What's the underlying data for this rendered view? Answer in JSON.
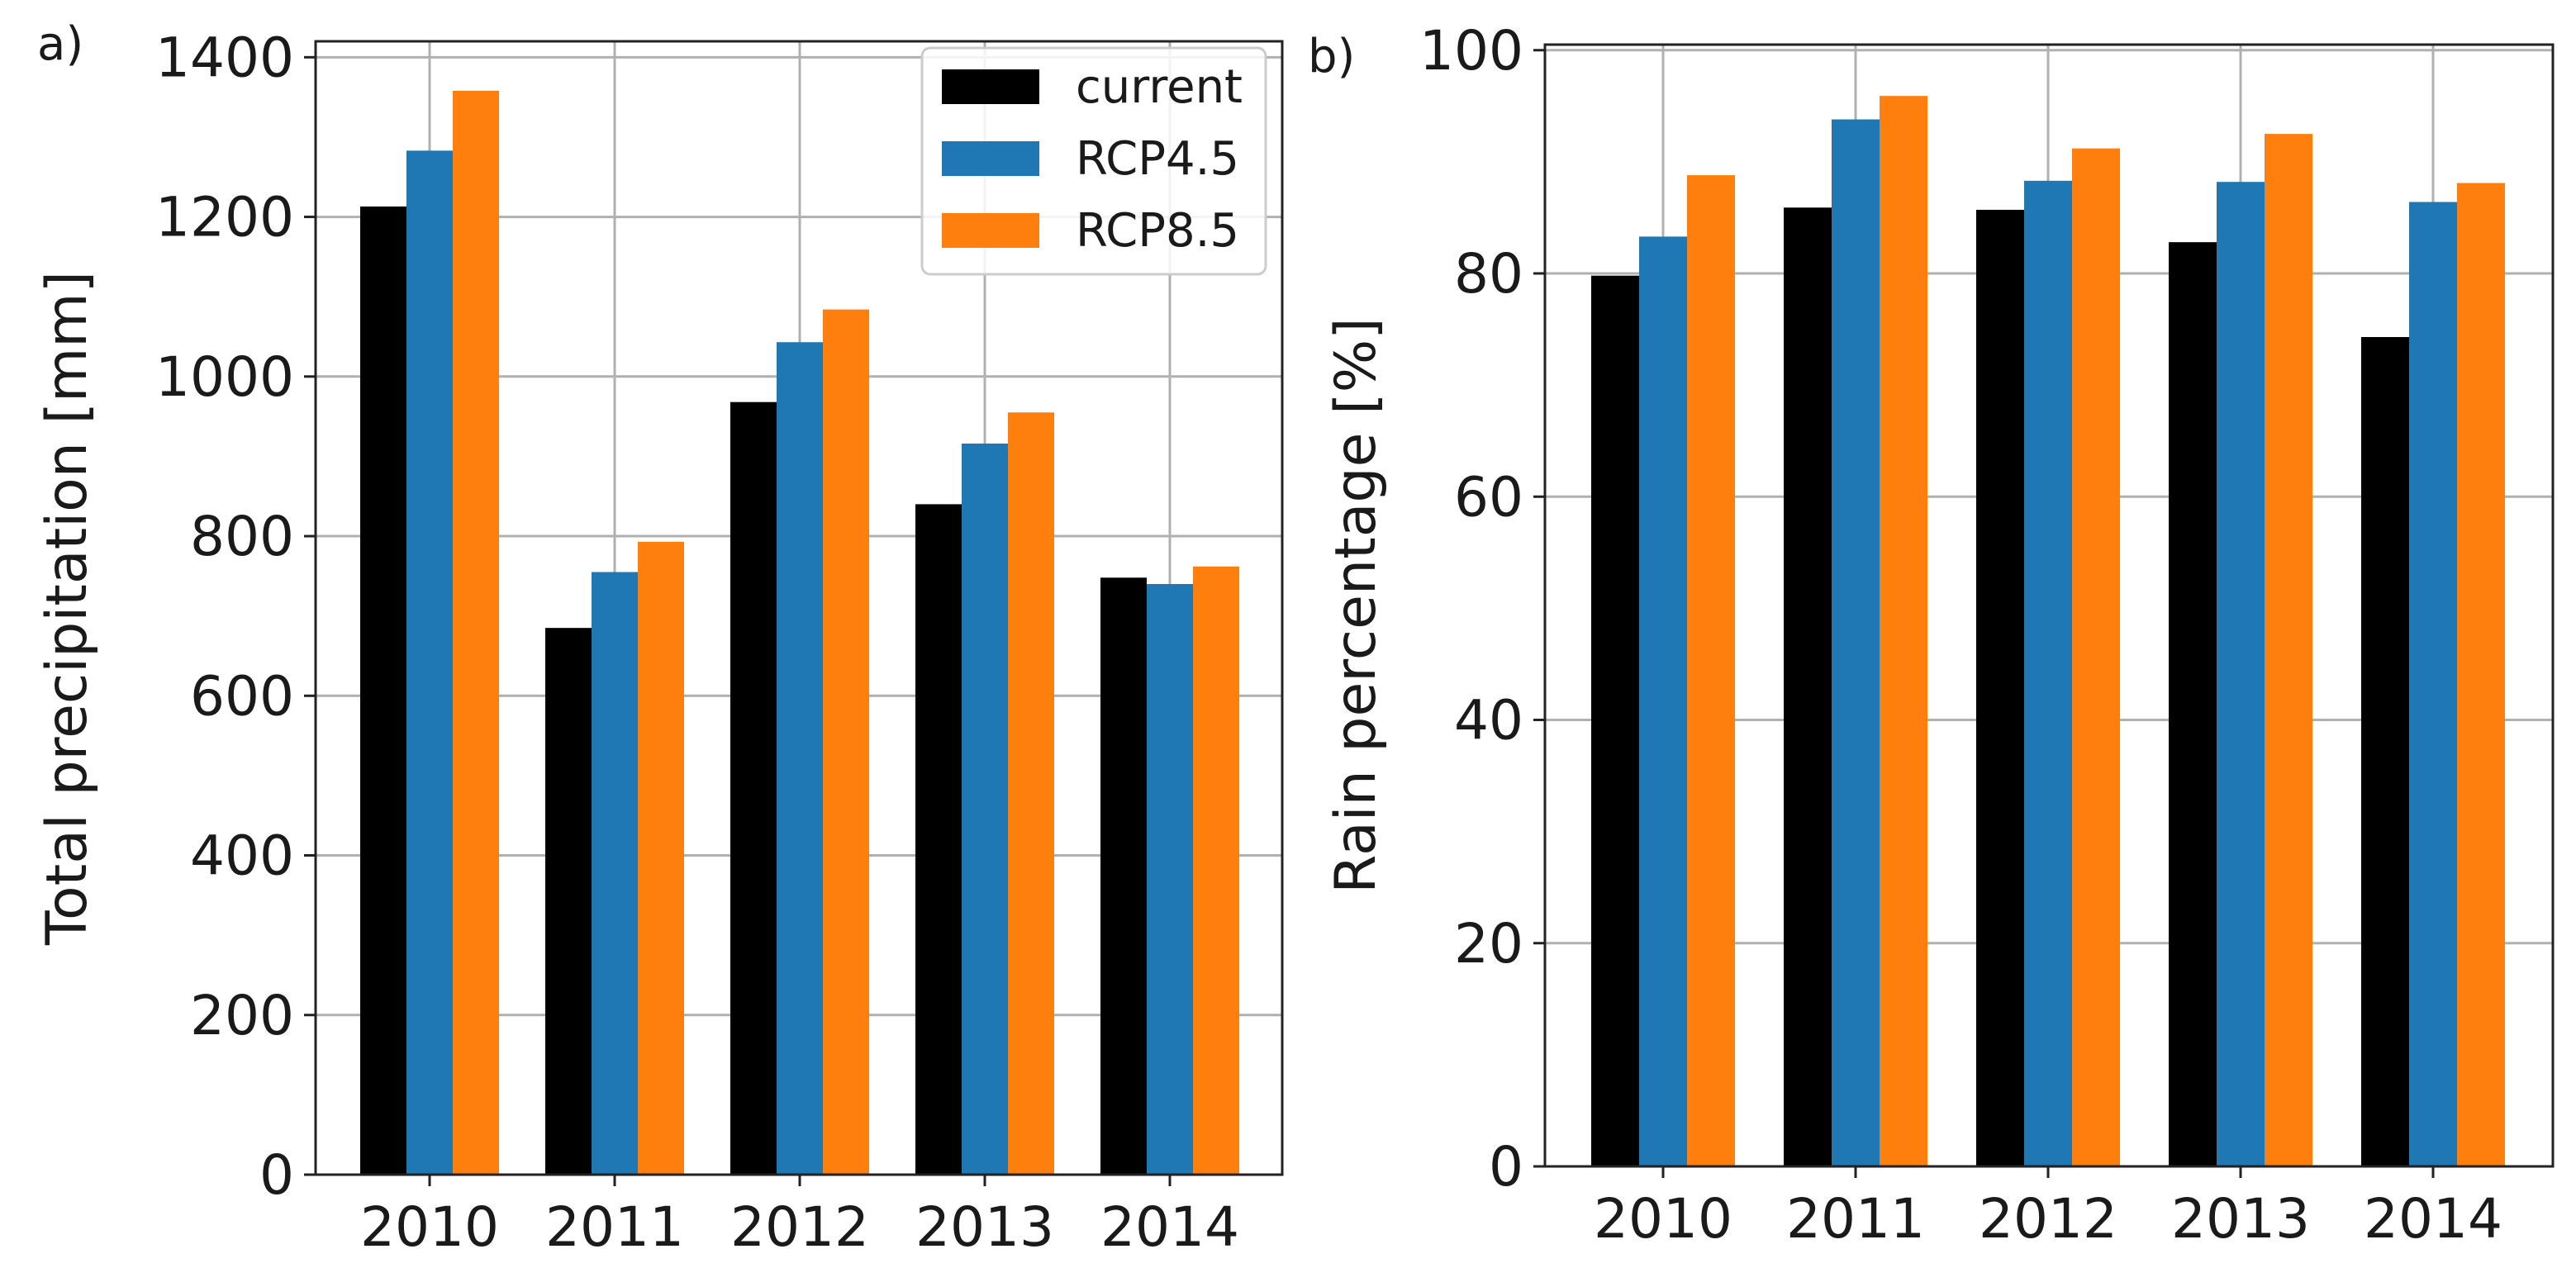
{
  "chart_data": [
    {
      "panel_label": "a)",
      "type": "bar",
      "categories": [
        "2010",
        "2011",
        "2012",
        "2013",
        "2014"
      ],
      "series": [
        {
          "name": "current",
          "color": "#000000",
          "values": [
            1213,
            685,
            968,
            840,
            748
          ]
        },
        {
          "name": "RCP4.5",
          "color": "#1f77b4",
          "values": [
            1283,
            755,
            1043,
            916,
            740
          ]
        },
        {
          "name": "RCP8.5",
          "color": "#ff7f0e",
          "values": [
            1358,
            793,
            1084,
            955,
            762
          ]
        }
      ],
      "xlabel": "",
      "ylabel": "Total precipitation [mm]",
      "ylim": [
        0,
        1420
      ],
      "yticks": [
        0,
        200,
        400,
        600,
        800,
        1000,
        1200,
        1400
      ],
      "grid": true,
      "legend": "top-right"
    },
    {
      "panel_label": "b)",
      "type": "bar",
      "categories": [
        "2010",
        "2011",
        "2012",
        "2013",
        "2014"
      ],
      "series": [
        {
          "name": "current",
          "color": "#000000",
          "values": [
            79.8,
            85.9,
            85.7,
            82.8,
            74.3
          ]
        },
        {
          "name": "RCP4.5",
          "color": "#1f77b4",
          "values": [
            83.3,
            93.8,
            88.3,
            88.2,
            86.4
          ]
        },
        {
          "name": "RCP8.5",
          "color": "#ff7f0e",
          "values": [
            88.8,
            95.9,
            91.2,
            92.5,
            88.1
          ]
        }
      ],
      "xlabel": "",
      "ylabel": "Rain percentage [%]",
      "ylim": [
        0,
        100.5
      ],
      "yticks": [
        0,
        20,
        40,
        60,
        80,
        100
      ],
      "grid": true,
      "legend": "none"
    }
  ]
}
